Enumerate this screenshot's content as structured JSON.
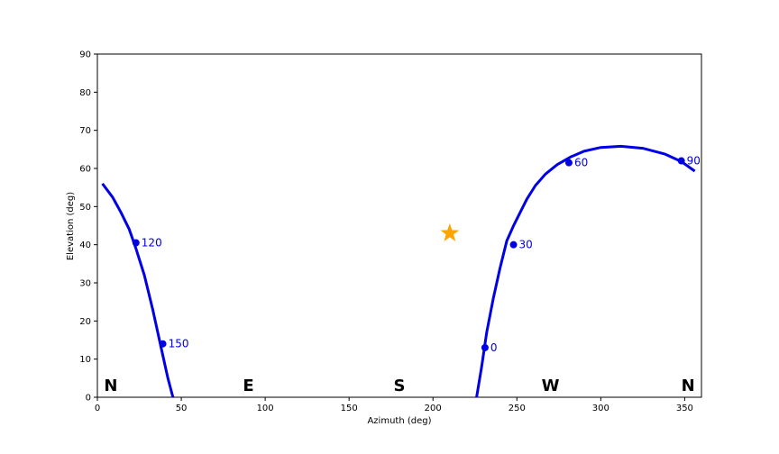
{
  "chart_data": {
    "type": "line",
    "xlabel": "Azimuth (deg)",
    "ylabel": "Elevation (deg)",
    "xlim": [
      0,
      360
    ],
    "ylim": [
      0,
      90
    ],
    "xticks": [
      "0",
      "50",
      "100",
      "150",
      "200",
      "250",
      "300",
      "350"
    ],
    "yticks": [
      "0",
      "10",
      "20",
      "30",
      "40",
      "50",
      "60",
      "70",
      "80",
      "90"
    ],
    "grid": false,
    "line_color": "#0000e6",
    "marker_color": "#ffa500",
    "series": [
      {
        "x": [
          226,
          229,
          232,
          236,
          240,
          244,
          248,
          252,
          256,
          261,
          267,
          274,
          282,
          290,
          300,
          312,
          325,
          338,
          348,
          356
        ],
        "y": [
          0,
          8,
          17,
          26,
          34,
          41,
          45,
          48.5,
          52,
          55.5,
          58.5,
          61,
          63,
          64.5,
          65.5,
          65.8,
          65.3,
          63.8,
          61.8,
          59.3
        ]
      },
      {
        "x": [
          3,
          9,
          14,
          19,
          23,
          28,
          33,
          38,
          42,
          45
        ],
        "y": [
          56,
          52.5,
          48.5,
          44,
          39,
          32,
          23,
          13,
          5,
          0
        ]
      }
    ],
    "labeled_points": [
      {
        "label": "0",
        "x": 231,
        "y": 13
      },
      {
        "label": "30",
        "x": 248,
        "y": 40
      },
      {
        "label": "60",
        "x": 281,
        "y": 61.5
      },
      {
        "label": "90",
        "x": 348,
        "y": 62
      },
      {
        "label": "120",
        "x": 23,
        "y": 40.5
      },
      {
        "label": "150",
        "x": 39,
        "y": 14
      }
    ],
    "star": {
      "x": 210,
      "y": 43
    },
    "directions": [
      {
        "label": "N",
        "x": 8
      },
      {
        "label": "E",
        "x": 90
      },
      {
        "label": "S",
        "x": 180
      },
      {
        "label": "W",
        "x": 270
      },
      {
        "label": "N",
        "x": 352
      }
    ]
  }
}
